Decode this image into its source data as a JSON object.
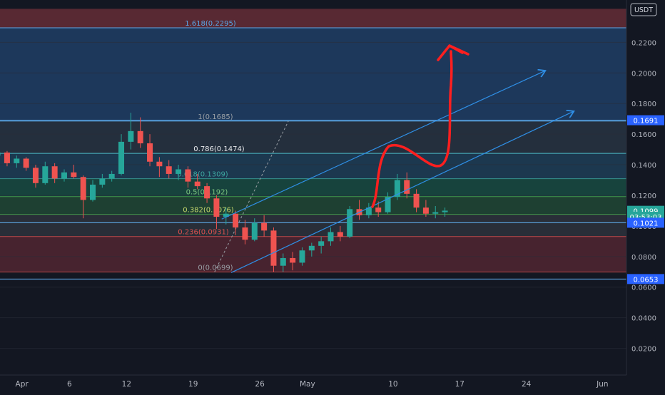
{
  "chart_data": {
    "type": "candlestick",
    "currency": "USDT",
    "y_axis": {
      "ticks": [
        "0.0200",
        "0.0400",
        "0.0600",
        "0.0800",
        "0.1000",
        "0.1200",
        "0.1400",
        "0.1600",
        "0.1800",
        "0.2000",
        "0.2200"
      ],
      "ylim": [
        0.0,
        0.2419
      ]
    },
    "x_axis": {
      "ticks": [
        "Apr",
        "6",
        "12",
        "19",
        "26",
        "May",
        "10",
        "17",
        "24",
        "Jun"
      ],
      "start_date": "2021-03-29",
      "end_date": "2021-06-01"
    },
    "fib_levels": [
      {
        "label": "1.618(0.2295)",
        "value": 0.2295
      },
      {
        "label": "1(0.1685)",
        "value": 0.1685
      },
      {
        "label": "0.786(0.1474)",
        "value": 0.1474
      },
      {
        "label": "0.618(0.1309)",
        "value": 0.1309
      },
      {
        "label": "0.5(0.1192)",
        "value": 0.1192
      },
      {
        "label": "0.382(0.1076)",
        "value": 0.1076
      },
      {
        "label": "0.236(0.0931)",
        "value": 0.0931
      },
      {
        "label": "0(0.0699)",
        "value": 0.0699
      }
    ],
    "price_badges": [
      {
        "text": "0.1691",
        "value": 0.1691,
        "color": "#2962ff"
      },
      {
        "text": "0.1099",
        "value": 0.1099,
        "color": "#26a69a"
      },
      {
        "text": "03:53:03",
        "value": 0.106,
        "color": "#26a69a"
      },
      {
        "text": "0.1021",
        "value": 0.1021,
        "color": "#2962ff"
      },
      {
        "text": "0.0653",
        "value": 0.0653,
        "color": "#2962ff"
      }
    ],
    "horizontal_lines": [
      0.2295,
      0.1691,
      0.1474,
      0.1021,
      0.0653
    ],
    "zones": [
      {
        "from": 0.2419,
        "to": 0.2295,
        "color": "#5c2a35"
      },
      {
        "from": 0.2295,
        "to": 0.1685,
        "color": "#1e3a5f"
      },
      {
        "from": 0.1685,
        "to": 0.1474,
        "color": "#25303f"
      },
      {
        "from": 0.1474,
        "to": 0.1309,
        "color": "#1c3a52"
      },
      {
        "from": 0.1309,
        "to": 0.1192,
        "color": "#17463f"
      },
      {
        "from": 0.1192,
        "to": 0.1076,
        "color": "#1f4234"
      },
      {
        "from": 0.1076,
        "to": 0.0931,
        "color": "#2a2f3a"
      },
      {
        "from": 0.0931,
        "to": 0.0699,
        "color": "#4a2430"
      }
    ],
    "channel": {
      "upper": [
        [
          "2021-04-22",
          0.1045
        ],
        [
          "2021-05-26",
          0.2015
        ]
      ],
      "lower": [
        [
          "2021-04-23",
          0.0695
        ],
        [
          "2021-05-29",
          0.175
        ]
      ]
    },
    "colors": {
      "up": "#26a69a",
      "down": "#ef5350",
      "drawing": "#ff1f1f",
      "channel": "#2f8fe6"
    }
  }
}
